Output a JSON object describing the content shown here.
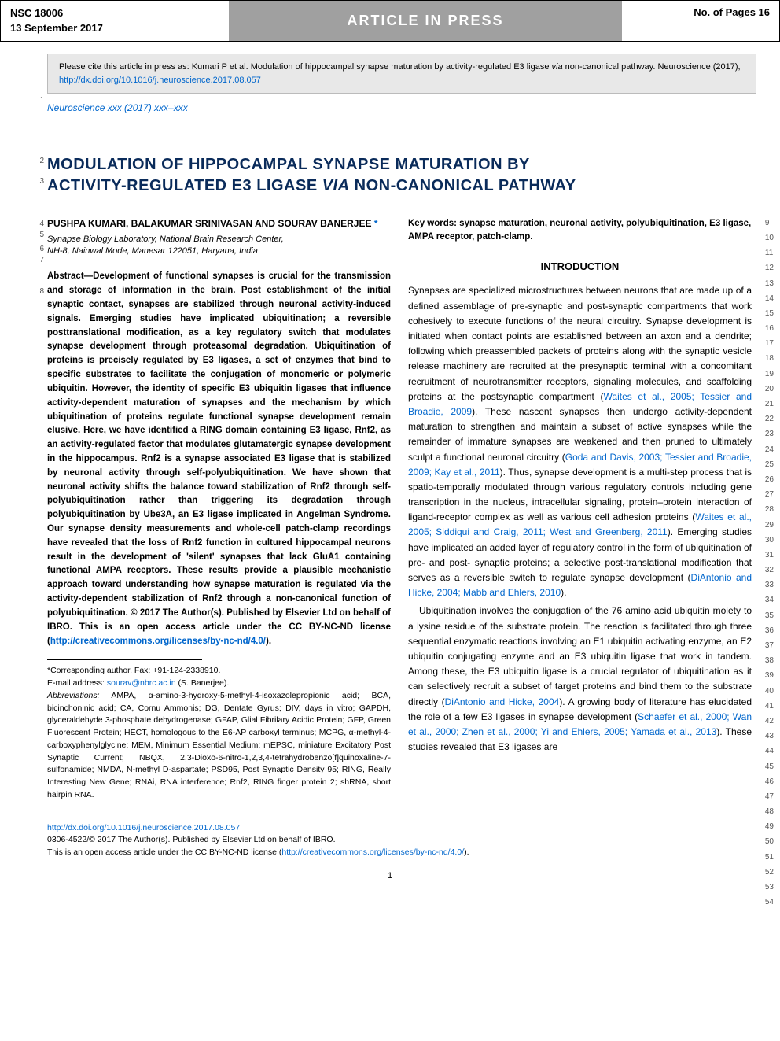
{
  "header": {
    "nsc": "NSC 18006",
    "date": "13 September 2017",
    "center": "ARTICLE IN PRESS",
    "pages": "No. of Pages 16"
  },
  "cite_box": {
    "prefix": "Please cite this article in press as: Kumari P et al. Modulation of hippocampal synapse maturation by activity-regulated E3 ligase ",
    "italic_word": "via",
    "suffix": " non-canonical pathway. Neuroscience (2017), ",
    "link": "http://dx.doi.org/10.1016/j.neuroscience.2017.08.057"
  },
  "journal_ref": "Neuroscience xxx (2017) xxx–xxx",
  "title_line1": "MODULATION OF HIPPOCAMPAL SYNAPSE MATURATION BY",
  "title_line2": "ACTIVITY-REGULATED E3 LIGASE VIA NON-CANONICAL PATHWAY",
  "authors": "PUSHPA KUMARI, BALAKUMAR SRINIVASAN AND SOURAV BANERJEE",
  "author_mark": " *",
  "affil1": "Synapse Biology Laboratory, National Brain Research Center,",
  "affil2": "NH-8, Nainwal Mode, Manesar 122051, Haryana, India",
  "abstract": "Abstract—Development of functional synapses is crucial for the transmission and storage of information in the brain. Post establishment of the initial synaptic contact, synapses are stabilized through neuronal activity-induced signals. Emerging studies have implicated ubiquitination; a reversible posttranslational modification, as a key regulatory switch that modulates synapse development through proteasomal degradation. Ubiquitination of proteins is precisely regulated by E3 ligases, a set of enzymes that bind to specific substrates to facilitate the conjugation of monomeric or polymeric ubiquitin. However, the identity of specific E3 ubiquitin ligases that influence activity-dependent maturation of synapses and the mechanism by which ubiquitination of proteins regulate functional synapse development remain elusive. Here, we have identified a RING domain containing E3 ligase, Rnf2, as an activity-regulated factor that modulates glutamatergic synapse development in the hippocampus. Rnf2 is a synapse associated E3 ligase that is stabilized by neuronal activity through self-polyubiquitination. We have shown that neuronal activity shifts the balance toward stabilization of Rnf2 through self-polyubiquitination rather than triggering its degradation through polyubiquitination by Ube3A, an E3 ligase implicated in Angelman Syndrome. Our synapse density measurements and whole-cell patch-clamp recordings have revealed that the loss of Rnf2 function in cultured hippocampal neurons result in the development of 'silent' synapses that lack GluA1 containing functional AMPA receptors. These results provide a plausible mechanistic approach toward understanding how synapse maturation is regulated via the activity-dependent stabilization of Rnf2 through a non-canonical function of polyubiquitination. © 2017 The Author(s). Published by Elsevier Ltd on behalf of IBRO. This is an open access article under the CC BY-NC-ND license (",
  "abstract_link": "http://creativecommons.org/licenses/by-nc-nd/4.0/",
  "abstract_close": ").",
  "corresponding_label": "*Corresponding author. Fax: +91-124-2338910.",
  "email_label": "E-mail address: ",
  "email": "sourav@nbrc.ac.in",
  "email_suffix": " (S. Banerjee).",
  "abbrev_label": "Abbreviations:",
  "abbrev_text": " AMPA, α-amino-3-hydroxy-5-methyl-4-isoxazolepropionic acid; BCA, bicinchoninic acid; CA, Cornu Ammonis; DG, Dentate Gyrus; DIV, days in vitro; GAPDH, glyceraldehyde 3-phosphate dehydrogenase; GFAP, Glial Fibrilary Acidic Protein; GFP, Green Fluorescent Protein; HECT, homologous to the E6-AP carboxyl terminus; MCPG, α-methyl-4-carboxyphenylglycine; MEM, Minimum Essential Medium; mEPSC, miniature Excitatory Post Synaptic Current; NBQX, 2,3-Dioxo-6-nitro-1,2,3,4-tetrahydrobenzo[f]quinoxaline-7-sulfonamide; NMDA, N-methyl D-aspartate; PSD95, Post Synaptic Density 95; RING, Really Interesting New Gene; RNAi, RNA interference; Rnf2, RING finger protein 2; shRNA, short hairpin RNA.",
  "keywords": "Key words: synapse maturation, neuronal activity, polyubiquitination, E3 ligase, AMPA receptor, patch-clamp.",
  "section_intro": "INTRODUCTION",
  "intro_p1a": "Synapses are specialized microstructures between neurons that are made up of a defined assemblage of pre-synaptic and post-synaptic compartments that work cohesively to execute functions of the neural circuitry. Synapse development is initiated when contact points are established between an axon and a dendrite; following which preassembled packets of proteins along with the synaptic vesicle release machinery are recruited at the presynaptic terminal with a concomitant recruitment of neurotransmitter receptors, signaling molecules, and scaffolding proteins at the postsynaptic compartment (",
  "intro_ref1": "Waites et al., 2005; Tessier and Broadie, 2009",
  "intro_p1b": "). These nascent synapses then undergo activity-dependent maturation to strengthen and maintain a subset of active synapses while the remainder of immature synapses are weakened and then pruned to ultimately sculpt a functional neuronal circuitry (",
  "intro_ref2": "Goda and Davis, 2003; Tessier and Broadie, 2009; Kay et al., 2011",
  "intro_p1c": "). Thus, synapse development is a multi-step process that is spatio-temporally modulated through various regulatory controls including gene transcription in the nucleus, intracellular signaling, protein–protein interaction of ligand-receptor complex as well as various cell adhesion proteins (",
  "intro_ref3": "Waites et al., 2005; Siddiqui and Craig, 2011; West and Greenberg, 2011",
  "intro_p1d": "). Emerging studies have implicated an added layer of regulatory control in the form of ubiquitination of pre- and post- synaptic proteins; a selective post-translational modification that serves as a reversible switch to regulate synapse development (",
  "intro_ref4": "DiAntonio and Hicke, 2004; Mabb and Ehlers, 2010",
  "intro_p1e": ").",
  "intro_p2a": "Ubiquitination involves the conjugation of the 76 amino acid ubiquitin moiety to a lysine residue of the substrate protein. The reaction is facilitated through three sequential enzymatic reactions involving an E1 ubiquitin activating enzyme, an E2 ubiquitin conjugating enzyme and an E3 ubiquitin ligase that work in tandem. Among these, the E3 ubiquitin ligase is a crucial regulator of ubiquitination as it can selectively recruit a subset of target proteins and bind them to the substrate directly (",
  "intro_ref5": "DiAntonio and Hicke, 2004",
  "intro_p2b": "). A growing body of literature has elucidated the role of a few E3 ligases in synapse development (",
  "intro_ref6": "Schaefer et al., 2000; Wan et al., 2000; Zhen et al., 2000; Yi and Ehlers, 2005; Yamada et al., 2013",
  "intro_p2c": "). These studies revealed that E3 ligases are",
  "footer": {
    "doi": "http://dx.doi.org/10.1016/j.neuroscience.2017.08.057",
    "copyright": "0306-4522/© 2017 The Author(s). Published by Elsevier Ltd on behalf of IBRO.",
    "license_prefix": "This is an open access article under the CC BY-NC-ND license (",
    "license_link": "http://creativecommons.org/licenses/by-nc-nd/4.0/",
    "license_suffix": ").",
    "page_number": "1"
  },
  "line_nums_left": {
    "n1": "1",
    "n2": "2",
    "n3": "3",
    "n4": "4",
    "n5": "5",
    "n6": "6",
    "n7": "7",
    "n8": "8"
  },
  "line_nums_right": [
    "9",
    "10",
    "11",
    "12",
    "13",
    "14",
    "15",
    "16",
    "17",
    "18",
    "19",
    "20",
    "21",
    "22",
    "23",
    "24",
    "25",
    "26",
    "27",
    "28",
    "29",
    "30",
    "31",
    "32",
    "33",
    "34",
    "35",
    "36",
    "37",
    "38",
    "39",
    "40",
    "41",
    "42",
    "43",
    "44",
    "45",
    "46",
    "47",
    "48",
    "49",
    "50",
    "51",
    "52",
    "53",
    "54"
  ]
}
